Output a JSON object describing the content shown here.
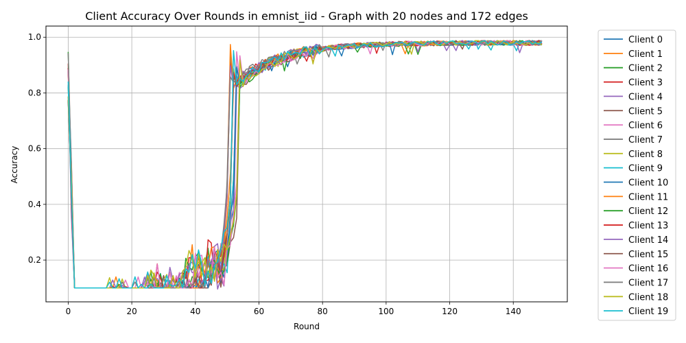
{
  "chart_data": {
    "type": "line",
    "title": "Client Accuracy Over Rounds in emnist_iid - Graph with 20 nodes and 172 edges",
    "xlabel": "Round",
    "ylabel": "Accuracy",
    "xlim": [
      -7,
      157
    ],
    "ylim": [
      0.05,
      1.04
    ],
    "xticks": [
      0,
      20,
      40,
      60,
      80,
      100,
      120,
      140
    ],
    "yticks": [
      0.2,
      0.4,
      0.6,
      0.8,
      1.0
    ],
    "ytick_labels": [
      "0.2",
      "0.4",
      "0.6",
      "0.8",
      "1.0"
    ],
    "grid": true,
    "legend_position": "outside-right",
    "rounds": 150,
    "curve_profile": {
      "initial_accuracy": 0.85,
      "collapse_round": 1,
      "plateau_accuracy": 0.1,
      "rise_start_round": 49,
      "rise_end_round": 56,
      "accuracy_at_round_56": 0.85,
      "accuracy_at_round_70": 0.94,
      "accuracy_at_round_100": 0.97,
      "final_accuracy": 0.98
    },
    "series": [
      {
        "name": "Client 0",
        "color": "#1f77b4"
      },
      {
        "name": "Client 1",
        "color": "#ff7f0e"
      },
      {
        "name": "Client 2",
        "color": "#2ca02c"
      },
      {
        "name": "Client 3",
        "color": "#d62728"
      },
      {
        "name": "Client 4",
        "color": "#9467bd"
      },
      {
        "name": "Client 5",
        "color": "#8c564b"
      },
      {
        "name": "Client 6",
        "color": "#e377c2"
      },
      {
        "name": "Client 7",
        "color": "#7f7f7f"
      },
      {
        "name": "Client 8",
        "color": "#bcbd22"
      },
      {
        "name": "Client 9",
        "color": "#17becf"
      },
      {
        "name": "Client 10",
        "color": "#1f77b4"
      },
      {
        "name": "Client 11",
        "color": "#ff7f0e"
      },
      {
        "name": "Client 12",
        "color": "#2ca02c"
      },
      {
        "name": "Client 13",
        "color": "#d62728"
      },
      {
        "name": "Client 14",
        "color": "#9467bd"
      },
      {
        "name": "Client 15",
        "color": "#8c564b"
      },
      {
        "name": "Client 16",
        "color": "#e377c2"
      },
      {
        "name": "Client 17",
        "color": "#7f7f7f"
      },
      {
        "name": "Client 18",
        "color": "#bcbd22"
      },
      {
        "name": "Client 19",
        "color": "#17becf"
      }
    ]
  }
}
